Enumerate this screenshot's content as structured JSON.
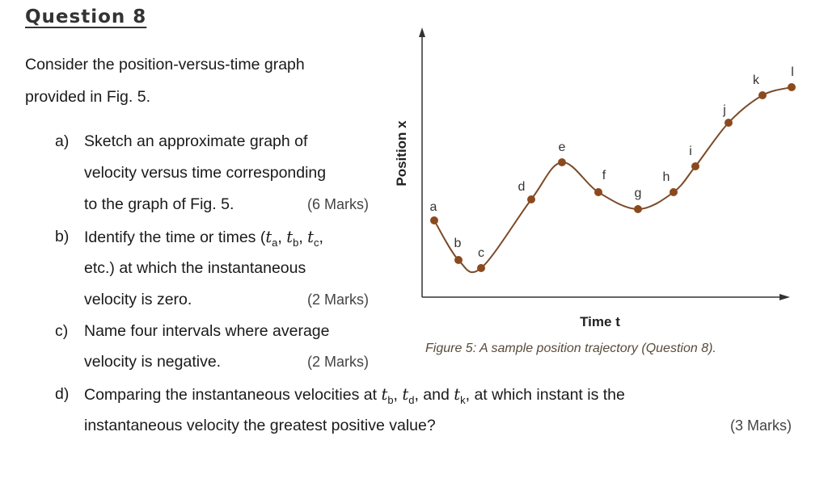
{
  "question": {
    "title": "Question 8",
    "intro_1": "Consider  the  position-versus-time  graph",
    "intro_2": "provided in Fig. 5.",
    "a": {
      "label": "a)",
      "line1": "Sketch an approximate graph of",
      "line2": "velocity versus time corresponding",
      "line3": "to the graph of Fig. 5.",
      "marks": "(6 Marks)"
    },
    "b": {
      "label": "b)",
      "line1_pre": "Identify the time or times (",
      "t": "t",
      "sub_a": "a",
      "sub_b": "b",
      "sub_c": "c",
      "comma": ", ",
      "line1_post": ",",
      "line2": "etc.) at which the instantaneous",
      "line3": "velocity is zero.",
      "marks": "(2 Marks)"
    },
    "c": {
      "label": "c)",
      "line1": "Name four intervals where average",
      "line2": "velocity is negative.",
      "marks": "(2 Marks)"
    },
    "d": {
      "label": "d)",
      "line1_pre": "Comparing the instantaneous velocities at ",
      "sub_b": "b",
      "sub_d": "d",
      "sub_k": "k",
      "and": ", and ",
      "line1_post": ", at which instant is the",
      "line2": "instantaneous velocity the greatest positive value?",
      "marks": "(3 Marks)"
    }
  },
  "chart_data": {
    "type": "line",
    "title": "",
    "xlabel": "Time t",
    "ylabel": "Position x",
    "caption": "Figure 5: A sample position trajectory (Question 8).",
    "point_labels": [
      "a",
      "b",
      "c",
      "d",
      "e",
      "f",
      "g",
      "h",
      "i",
      "j",
      "k",
      "l"
    ],
    "grid": false,
    "colors": {
      "curve": "#7a4a2a",
      "points": "#8b4a1e",
      "axes": "#333333"
    }
  }
}
